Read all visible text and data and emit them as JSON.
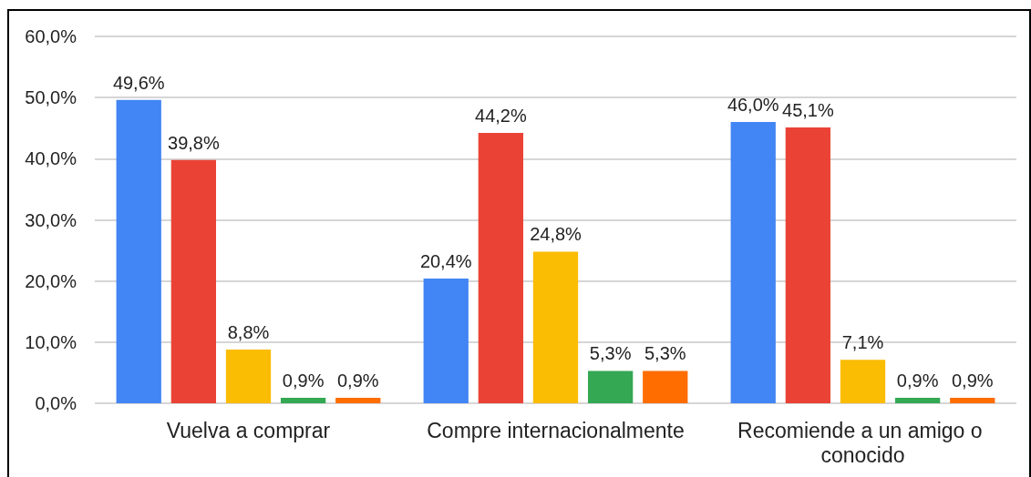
{
  "chart_data": {
    "type": "bar",
    "categories": [
      "Vuelva a comprar",
      "Compre internacionalmente",
      "Recomiende a un amigo o conocido"
    ],
    "series": [
      {
        "color": "#4285f4",
        "values": [
          49.6,
          20.4,
          46.0
        ],
        "value_labels": [
          "49,6%",
          "20,4%",
          "46,0%"
        ]
      },
      {
        "color": "#ea4335",
        "values": [
          39.8,
          44.2,
          45.1
        ],
        "value_labels": [
          "39,8%",
          "44,2%",
          "45,1%"
        ]
      },
      {
        "color": "#fbbc04",
        "values": [
          8.8,
          24.8,
          7.1
        ],
        "value_labels": [
          "8,8%",
          "24,8%",
          "7,1%"
        ]
      },
      {
        "color": "#34a853",
        "values": [
          0.9,
          5.3,
          0.9
        ],
        "value_labels": [
          "0,9%",
          "5,3%",
          "0,9%"
        ]
      },
      {
        "color": "#ff6d01",
        "values": [
          0.9,
          5.3,
          0.9
        ],
        "value_labels": [
          "0,9%",
          "5,3%",
          "0,9%"
        ]
      }
    ],
    "ylim": [
      0,
      60
    ],
    "yticks": [
      {
        "value": 0,
        "label": "0,0%"
      },
      {
        "value": 10,
        "label": "10,0%"
      },
      {
        "value": 20,
        "label": "20,0%"
      },
      {
        "value": 30,
        "label": "30,0%"
      },
      {
        "value": 40,
        "label": "40,0%"
      },
      {
        "value": 50,
        "label": "50,0%"
      },
      {
        "value": 60,
        "label": "60,0%"
      }
    ],
    "grid": "y"
  }
}
